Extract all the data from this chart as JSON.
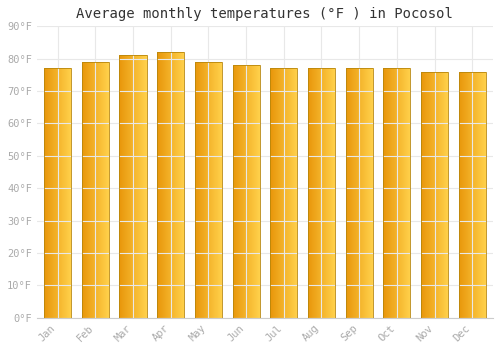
{
  "title": "Average monthly temperatures (°F ) in Pocosol",
  "months": [
    "Jan",
    "Feb",
    "Mar",
    "Apr",
    "May",
    "Jun",
    "Jul",
    "Aug",
    "Sep",
    "Oct",
    "Nov",
    "Dec"
  ],
  "values": [
    77,
    79,
    81,
    82,
    79,
    78,
    77,
    77,
    77,
    77,
    76,
    76
  ],
  "ylim": [
    0,
    90
  ],
  "yticks": [
    0,
    10,
    20,
    30,
    40,
    50,
    60,
    70,
    80,
    90
  ],
  "ytick_labels": [
    "0°F",
    "10°F",
    "20°F",
    "30°F",
    "40°F",
    "50°F",
    "60°F",
    "70°F",
    "80°F",
    "90°F"
  ],
  "background_color": "#ffffff",
  "grid_color": "#e8e8e8",
  "title_fontsize": 10,
  "tick_fontsize": 7.5,
  "tick_color": "#aaaaaa",
  "bar_color_left": "#E8960A",
  "bar_color_right": "#FFD04A",
  "bar_edge_color": "#B8860B",
  "bar_width": 0.72
}
